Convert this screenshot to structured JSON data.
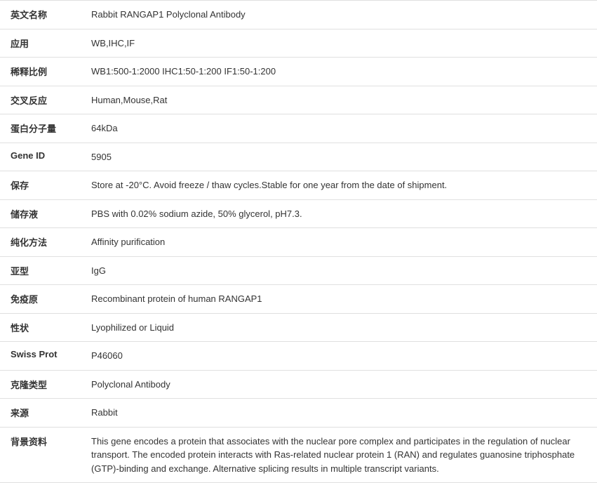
{
  "table": {
    "rows": [
      {
        "label": "英文名称",
        "value": "Rabbit RANGAP1 Polyclonal Antibody"
      },
      {
        "label": "应用",
        "value": "WB,IHC,IF"
      },
      {
        "label": "稀释比例",
        "value": "WB1:500-1:2000 IHC1:50-1:200 IF1:50-1:200"
      },
      {
        "label": "交叉反应",
        "value": "Human,Mouse,Rat"
      },
      {
        "label": "蛋白分子量",
        "value": "64kDa"
      },
      {
        "label": "Gene ID",
        "value": "5905"
      },
      {
        "label": "保存",
        "value": "Store at -20°C. Avoid freeze / thaw cycles.Stable for one year from the date of shipment."
      },
      {
        "label": "储存液",
        "value": "PBS with 0.02% sodium azide, 50% glycerol, pH7.3."
      },
      {
        "label": "纯化方法",
        "value": "Affinity purification"
      },
      {
        "label": "亚型",
        "value": "IgG"
      },
      {
        "label": "免疫原",
        "value": "Recombinant protein of human RANGAP1"
      },
      {
        "label": "性状",
        "value": "Lyophilized or Liquid"
      },
      {
        "label": "Swiss Prot",
        "value": "P46060"
      },
      {
        "label": "克隆类型",
        "value": "Polyclonal Antibody"
      },
      {
        "label": "来源",
        "value": "Rabbit"
      },
      {
        "label": "背景资料",
        "value": "This gene encodes a protein that associates with the nuclear pore complex and participates in the regulation of nuclear transport. The encoded protein interacts with Ras-related nuclear protein 1 (RAN) and regulates guanosine triphosphate (GTP)-binding and exchange. Alternative splicing results in multiple transcript variants."
      }
    ],
    "label_color": "#333333",
    "value_color": "#333333",
    "border_color": "#e0e0e0",
    "background_color": "#ffffff",
    "font_size": 13,
    "label_width": 120
  }
}
